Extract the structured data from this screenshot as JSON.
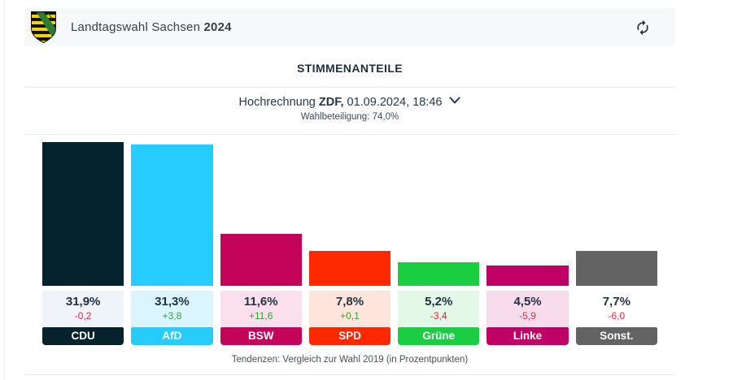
{
  "header": {
    "title_regular": "Landtagswahl Sachsen",
    "title_bold": "2024",
    "logo": "saxony-coat-of-arms"
  },
  "section_title": "STIMMENANTEILE",
  "subheader": {
    "prefix": "Hochrechnung ",
    "source": "ZDF,",
    "datetime": " 01.09.2024, 18:46",
    "turnout": "Wahlbeteiligung: 74,0%"
  },
  "footer_note": "Tendenzen: Vergleich zur Wahl 2019 (in Prozentpunkten)",
  "colors": {
    "trend_up": "#31a135",
    "trend_down": "#f5233d",
    "header_bg": "#f7f8fa",
    "band_text": "#ffffff"
  },
  "chart_data": {
    "type": "bar",
    "title": "Stimmenanteile",
    "subtitle": "Hochrechnung ZDF, 01.09.2024, 18:46",
    "unit": "percent",
    "categories": [
      "CDU",
      "AfD",
      "BSW",
      "SPD",
      "Grüne",
      "Linke",
      "Sonst."
    ],
    "values": [
      31.9,
      31.3,
      11.6,
      7.8,
      5.2,
      4.5,
      7.7
    ],
    "value_labels": [
      "31,9%",
      "31,3%",
      "11,6%",
      "7,8%",
      "5,2%",
      "4,5%",
      "7,7%"
    ],
    "trends": [
      "-0,2",
      "+3,8",
      "+11,6",
      "+0,1",
      "-3,4",
      "-5,9",
      "-6,0"
    ],
    "trend_directions": [
      "down",
      "up",
      "up",
      "up",
      "down",
      "down",
      "down"
    ],
    "bar_colors": [
      "#05222d",
      "#26ccfb",
      "#c40458",
      "#fe2900",
      "#1bcd40",
      "#bf0065",
      "#636363"
    ],
    "tint_colors": [
      "#eff4fa",
      "#dbf5fe",
      "#fbdfec",
      "#ffe5dc",
      "#e4f8e8",
      "#f9dcec",
      "#ffffff"
    ],
    "ylim": [
      0,
      35
    ],
    "grid": false,
    "legend": false,
    "note": "Tendenzen: Vergleich zur Wahl 2019 (in Prozentpunkten)"
  }
}
